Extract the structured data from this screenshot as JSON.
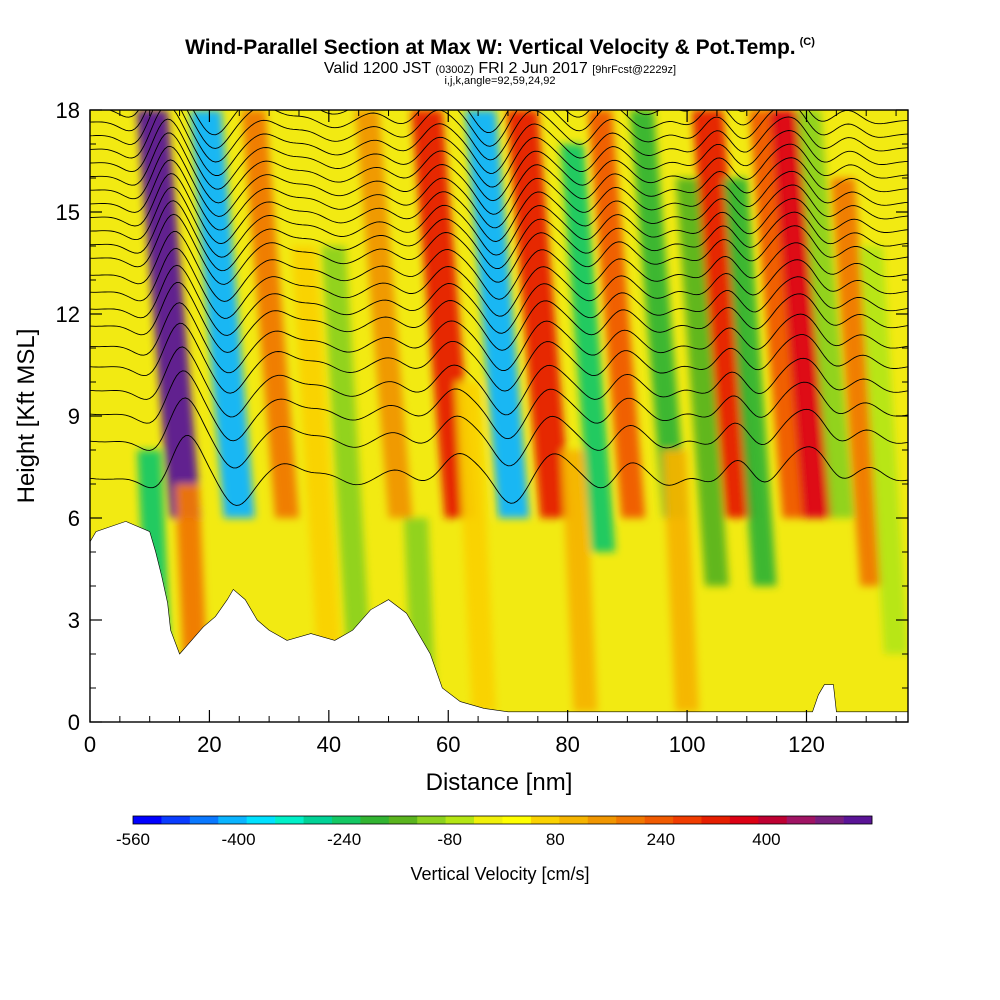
{
  "header": {
    "title": "Wind-Parallel Section at Max W: Vertical Velocity & Pot.Temp.",
    "copyright": "(C)",
    "valid_prefix": "Valid 1200 JST",
    "valid_utc": "(0300Z)",
    "valid_date": "FRI 2 Jun 2017",
    "forecast": "[9hrFcst@2229z]",
    "indices": "i,j,k,angle=92,59,24,92"
  },
  "chart_data": {
    "type": "heatmap",
    "xlabel": "Distance [nm]",
    "ylabel": "Height [Kft MSL]",
    "xlim": [
      0,
      137
    ],
    "ylim": [
      0,
      18
    ],
    "x_ticks": [
      0,
      20,
      40,
      60,
      80,
      100,
      120
    ],
    "y_ticks": [
      0,
      3,
      6,
      9,
      12,
      15,
      18
    ],
    "colorbar": {
      "label": "Vertical Velocity [cm/s]",
      "range": [
        -560,
        560
      ],
      "tick_labels": [
        "-560",
        "-400",
        "-240",
        "-80",
        "80",
        "240",
        "400"
      ],
      "colors": [
        "#0000ff",
        "#0a3cff",
        "#0a78ff",
        "#0ab4ff",
        "#00e1ff",
        "#00f0c8",
        "#00d296",
        "#14c864",
        "#32b432",
        "#5ab41e",
        "#8cd21e",
        "#b4e614",
        "#f0f00a",
        "#ffff00",
        "#fad200",
        "#f5b400",
        "#f09600",
        "#f07800",
        "#f05a00",
        "#f03c00",
        "#e61e00",
        "#dc0014",
        "#be0032",
        "#a01464",
        "#781e7d",
        "#5a1496"
      ]
    },
    "columns": [
      {
        "x": 3,
        "w": -30,
        "peak_y": 2
      },
      {
        "x": 12,
        "w": -240,
        "peak_y": 6
      },
      {
        "x": 16,
        "w": 520,
        "peak_y": 16
      },
      {
        "x": 18,
        "w": 180,
        "peak_y": 5
      },
      {
        "x": 25,
        "w": -420,
        "peak_y": 16
      },
      {
        "x": 33,
        "w": 200,
        "peak_y": 16
      },
      {
        "x": 40,
        "w": 60,
        "peak_y": 12
      },
      {
        "x": 45,
        "w": -120,
        "peak_y": 12
      },
      {
        "x": 52,
        "w": 130,
        "peak_y": 16
      },
      {
        "x": 56,
        "w": -100,
        "peak_y": 4
      },
      {
        "x": 62,
        "w": 330,
        "peak_y": 16
      },
      {
        "x": 66,
        "w": 80,
        "peak_y": 8
      },
      {
        "x": 71,
        "w": -400,
        "peak_y": 16
      },
      {
        "x": 78,
        "w": 340,
        "peak_y": 16
      },
      {
        "x": 83,
        "w": 90,
        "peak_y": 6
      },
      {
        "x": 86,
        "w": -230,
        "peak_y": 15
      },
      {
        "x": 91,
        "w": 240,
        "peak_y": 16
      },
      {
        "x": 98,
        "w": -200,
        "peak_y": 16
      },
      {
        "x": 100,
        "w": 120,
        "peak_y": 6
      },
      {
        "x": 105,
        "w": -140,
        "peak_y": 14
      },
      {
        "x": 109,
        "w": 330,
        "peak_y": 16
      },
      {
        "x": 113,
        "w": -180,
        "peak_y": 14
      },
      {
        "x": 118,
        "w": 240,
        "peak_y": 16
      },
      {
        "x": 122,
        "w": 380,
        "peak_y": 16
      },
      {
        "x": 126,
        "w": -120,
        "peak_y": 16
      },
      {
        "x": 131,
        "w": 180,
        "peak_y": 14
      },
      {
        "x": 135,
        "w": -80,
        "peak_y": 12
      }
    ],
    "terrain": [
      {
        "x": 0,
        "h": 5.3
      },
      {
        "x": 1,
        "h": 5.6
      },
      {
        "x": 6,
        "h": 5.9
      },
      {
        "x": 10,
        "h": 5.6
      },
      {
        "x": 11,
        "h": 5.0
      },
      {
        "x": 12,
        "h": 4.3
      },
      {
        "x": 13,
        "h": 3.5
      },
      {
        "x": 13.5,
        "h": 2.7
      },
      {
        "x": 15,
        "h": 2.0
      },
      {
        "x": 17,
        "h": 2.4
      },
      {
        "x": 19,
        "h": 2.8
      },
      {
        "x": 21,
        "h": 3.1
      },
      {
        "x": 23,
        "h": 3.6
      },
      {
        "x": 24,
        "h": 3.9
      },
      {
        "x": 26,
        "h": 3.6
      },
      {
        "x": 28,
        "h": 3.0
      },
      {
        "x": 30,
        "h": 2.7
      },
      {
        "x": 33,
        "h": 2.4
      },
      {
        "x": 37,
        "h": 2.6
      },
      {
        "x": 41,
        "h": 2.4
      },
      {
        "x": 44,
        "h": 2.7
      },
      {
        "x": 47,
        "h": 3.3
      },
      {
        "x": 50,
        "h": 3.6
      },
      {
        "x": 53,
        "h": 3.2
      },
      {
        "x": 55,
        "h": 2.6
      },
      {
        "x": 57,
        "h": 2.0
      },
      {
        "x": 59,
        "h": 1.0
      },
      {
        "x": 62,
        "h": 0.6
      },
      {
        "x": 66,
        "h": 0.4
      },
      {
        "x": 70,
        "h": 0.3
      },
      {
        "x": 121,
        "h": 0.3
      },
      {
        "x": 122,
        "h": 0.8
      },
      {
        "x": 123,
        "h": 1.1
      },
      {
        "x": 124.5,
        "h": 1.1
      },
      {
        "x": 125,
        "h": 0.3
      },
      {
        "x": 137,
        "h": 0.3
      }
    ],
    "isentrope_levels": [
      7.2,
      8.3,
      9.1,
      9.8,
      10.5,
      11.1,
      11.7,
      12.2,
      12.7,
      13.2,
      13.7,
      14.1,
      14.5,
      14.9,
      15.3,
      15.7,
      16.1,
      16.5,
      16.9,
      17.3,
      17.7,
      18.1
    ]
  }
}
